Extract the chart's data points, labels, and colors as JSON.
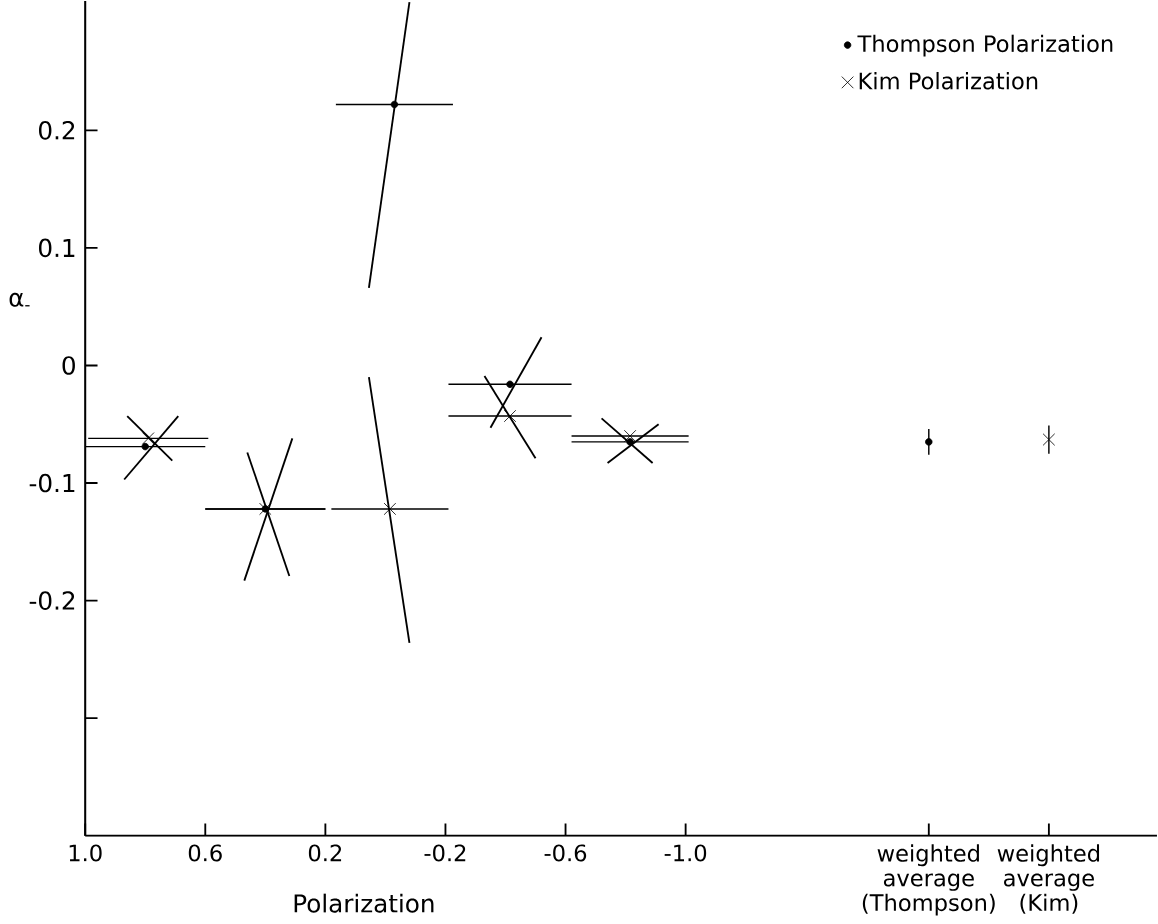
{
  "chart_data": {
    "type": "scatter",
    "xlabel": "Polarization",
    "ylabel": "α$_{-}$",
    "xlim": [
      1.0,
      -2.57
    ],
    "ylim": [
      -0.4,
      0.31
    ],
    "xticks": [
      {
        "value": 1.0,
        "label": "1.0"
      },
      0.6,
      0.2,
      -0.2,
      -0.6,
      {
        "value": -1.0,
        "label": "-1.0"
      },
      {
        "value": -1.81,
        "label": "weighted average (Thompson)"
      },
      {
        "value": -2.21,
        "label": "weighted average (Kim)"
      }
    ],
    "yticks": [
      0.2,
      0.1,
      0,
      -0.1,
      -0.2,
      {
        "value": -0.3,
        "label": null
      }
    ],
    "legend": "top right",
    "series": [
      {
        "name": "Thompson Polarization",
        "color": "#000000",
        "marker": "circle",
        "x": [
          0.8,
          0.4,
          -0.03,
          -0.415,
          -0.815
        ],
        "values": [
          -0.069,
          -0.122,
          0.222,
          -0.016,
          -0.065
        ],
        "xerrors": [
          0.2,
          0.2,
          0.195,
          0.205,
          0.195
        ]
      },
      {
        "name": "Kim Polarization",
        "color": "#000000",
        "marker": "cross",
        "x": [
          0.79,
          0.4,
          -0.015,
          -0.415,
          -0.815
        ],
        "values": [
          -0.062,
          -0.122,
          -0.122,
          -0.043,
          -0.06
        ],
        "xerrors": [
          0.2,
          0.2,
          0.195,
          0.205,
          0.195
        ]
      },
      {
        "color": "#000000",
        "marker": "circle",
        "x": [
          -1.81
        ],
        "values": [
          -0.065
        ],
        "errors": [
          0.011
        ]
      },
      {
        "color": "#000000",
        "marker": "cross",
        "x": [
          -2.21
        ],
        "values": [
          -0.063
        ],
        "errors": [
          0.012
        ]
      },
      {
        "type": "line",
        "color": "#000000",
        "x": [
          0.87,
          0.69
        ],
        "values": [
          -0.097,
          -0.043
        ]
      },
      {
        "type": "line",
        "color": "#000000",
        "x": [
          0.86,
          0.71
        ],
        "values": [
          -0.043,
          -0.081
        ]
      },
      {
        "type": "line",
        "color": "#000000",
        "x": [
          0.31,
          0.47
        ],
        "values": [
          -0.062,
          -0.183
        ]
      },
      {
        "type": "line",
        "color": "#000000",
        "x": [
          0.46,
          0.32
        ],
        "values": [
          -0.074,
          -0.179
        ]
      },
      {
        "type": "line",
        "color": "#000000",
        "x": [
          0.055,
          -0.08
        ],
        "values": [
          0.066,
          0.309
        ]
      },
      {
        "type": "line",
        "color": "#000000",
        "x": [
          0.055,
          -0.08
        ],
        "values": [
          -0.01,
          -0.236
        ]
      },
      {
        "type": "line",
        "color": "#000000",
        "x": [
          -0.35,
          -0.52
        ],
        "values": [
          -0.053,
          0.024
        ]
      },
      {
        "type": "line",
        "color": "#000000",
        "x": [
          -0.33,
          -0.5
        ],
        "values": [
          -0.009,
          -0.079
        ]
      },
      {
        "type": "line",
        "color": "#000000",
        "x": [
          -0.74,
          -0.91
        ],
        "values": [
          -0.083,
          -0.05
        ]
      },
      {
        "type": "line",
        "color": "#000000",
        "x": [
          -0.72,
          -0.89
        ],
        "values": [
          -0.045,
          -0.083
        ]
      }
    ]
  }
}
